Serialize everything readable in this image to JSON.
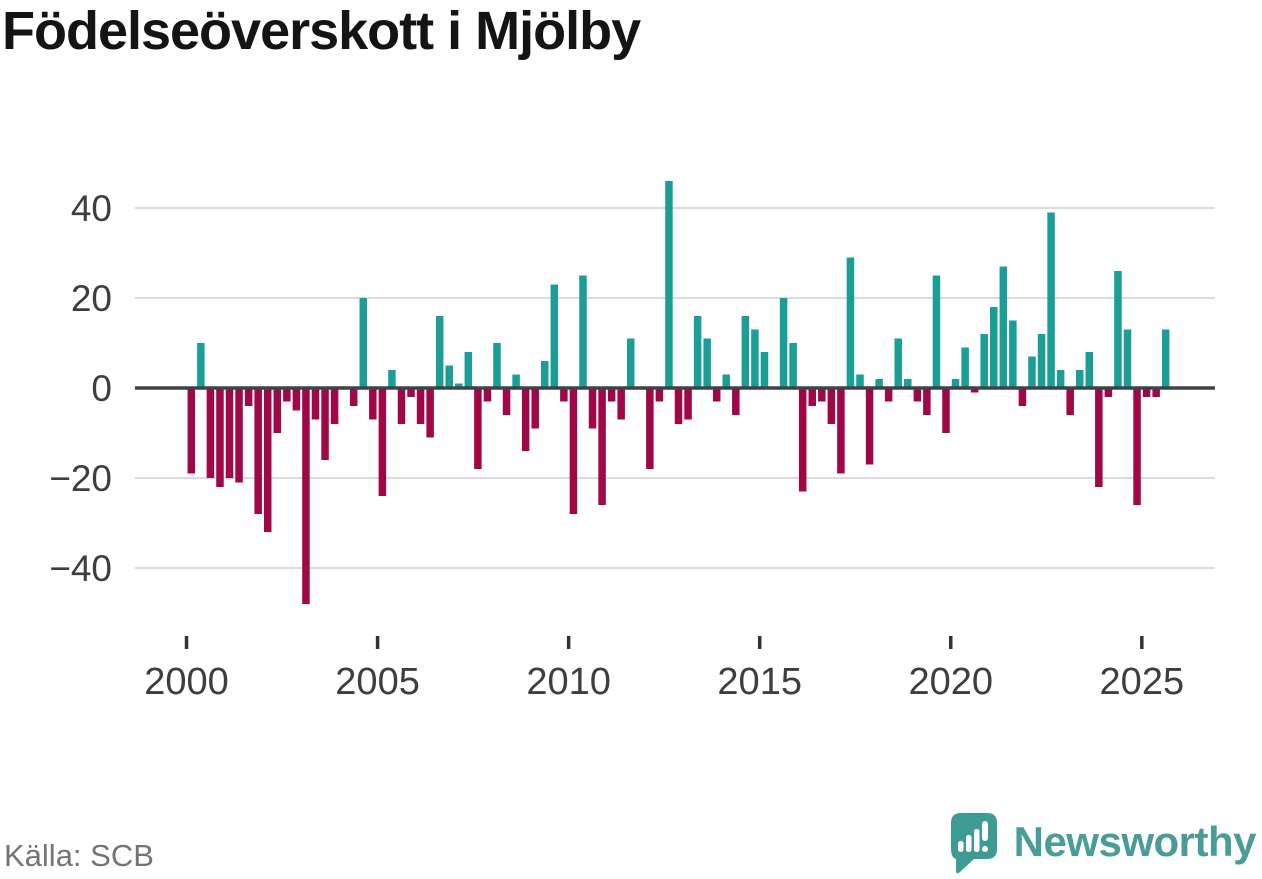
{
  "title": "Födelseöverskott i Mjölby",
  "source": "Källa: SCB",
  "branding": {
    "name": "Newsworthy",
    "icon": "bar-chart-speech-bubble-icon",
    "wordmark_color": "#4a9c98",
    "icon_color": "#3e9b94"
  },
  "colors": {
    "positive_bar": "#1a9e96",
    "negative_bar": "#a00747",
    "gridline": "#dbdbdb",
    "zero_line": "#3e4347",
    "axis_text": "#3e3e3e",
    "title_text": "#141414",
    "source_text": "#747474",
    "background": "#ffffff"
  },
  "chart_data": {
    "type": "bar",
    "title": "Födelseöverskott i Mjölby",
    "xlabel": "",
    "ylabel": "",
    "x_unit": "quarter",
    "start": "2000Q1",
    "end": "2025Q3",
    "ylim": [
      -50,
      48
    ],
    "grid": "horizontal",
    "legend": "none",
    "y_ticks": [
      40,
      20,
      0,
      -20,
      -40
    ],
    "y_tick_labels": [
      "40",
      "20",
      "0",
      "−20",
      "−40"
    ],
    "x_tick_years": [
      2000,
      2005,
      2010,
      2015,
      2020,
      2025
    ],
    "x_tick_labels": [
      "2000",
      "2005",
      "2010",
      "2015",
      "2020",
      "2025"
    ],
    "series_name": "Födelseöverskott per kvartal",
    "years": [
      {
        "year": 2000,
        "quarters": [
          -19,
          10,
          -20,
          -22
        ]
      },
      {
        "year": 2001,
        "quarters": [
          -20,
          -21,
          -4,
          -28
        ]
      },
      {
        "year": 2002,
        "quarters": [
          -32,
          -10,
          -3,
          -5
        ]
      },
      {
        "year": 2003,
        "quarters": [
          -48,
          -7,
          -16,
          -8
        ]
      },
      {
        "year": 2004,
        "quarters": [
          0,
          -4,
          20,
          -7
        ]
      },
      {
        "year": 2005,
        "quarters": [
          -24,
          4,
          -8,
          -2
        ]
      },
      {
        "year": 2006,
        "quarters": [
          -8,
          -11,
          16,
          5
        ]
      },
      {
        "year": 2007,
        "quarters": [
          1,
          8,
          -18,
          -3
        ]
      },
      {
        "year": 2008,
        "quarters": [
          10,
          -6,
          3,
          -14
        ]
      },
      {
        "year": 2009,
        "quarters": [
          -9,
          6,
          23,
          -3
        ]
      },
      {
        "year": 2010,
        "quarters": [
          -28,
          25,
          -9,
          -26
        ]
      },
      {
        "year": 2011,
        "quarters": [
          -3,
          -7,
          11,
          0
        ]
      },
      {
        "year": 2012,
        "quarters": [
          -18,
          -3,
          46,
          -8
        ]
      },
      {
        "year": 2013,
        "quarters": [
          -7,
          16,
          11,
          -3
        ]
      },
      {
        "year": 2014,
        "quarters": [
          3,
          -6,
          16,
          13
        ]
      },
      {
        "year": 2015,
        "quarters": [
          8,
          0,
          20,
          10
        ]
      },
      {
        "year": 2016,
        "quarters": [
          -23,
          -4,
          -3,
          -8
        ]
      },
      {
        "year": 2017,
        "quarters": [
          -19,
          29,
          3,
          -17
        ]
      },
      {
        "year": 2018,
        "quarters": [
          2,
          -3,
          11,
          2
        ]
      },
      {
        "year": 2019,
        "quarters": [
          -3,
          -6,
          25,
          -10
        ]
      },
      {
        "year": 2020,
        "quarters": [
          2,
          9,
          -1,
          12
        ]
      },
      {
        "year": 2021,
        "quarters": [
          18,
          27,
          15,
          -4
        ]
      },
      {
        "year": 2022,
        "quarters": [
          7,
          12,
          39,
          4
        ]
      },
      {
        "year": 2023,
        "quarters": [
          -6,
          4,
          8,
          -22
        ]
      },
      {
        "year": 2024,
        "quarters": [
          -2,
          26,
          13,
          -26
        ]
      },
      {
        "year": 2025,
        "quarters": [
          -2,
          -2,
          13
        ]
      }
    ]
  }
}
